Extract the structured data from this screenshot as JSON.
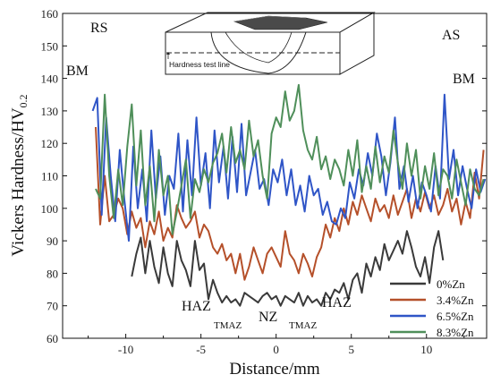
{
  "chart_data": {
    "type": "line",
    "xlabel": "Distance/mm",
    "ylabel_main": "Vickers Hardness/HV",
    "ylabel_sub": "0.2",
    "xlim": [
      -14.2,
      14
    ],
    "ylim": [
      60,
      160
    ],
    "xticks": [
      -10,
      -5,
      0,
      5,
      10
    ],
    "yticks": [
      60,
      70,
      80,
      90,
      100,
      110,
      120,
      130,
      140,
      150,
      160
    ],
    "grid": false,
    "legend_position": "bottom-right",
    "annotations": {
      "rs": "RS",
      "as": "AS",
      "bm_left": "BM",
      "bm_right": "BM",
      "haz_left": "HAZ",
      "haz_right": "HAZ",
      "tmaz_left": "TMAZ",
      "tmaz_right": "TMAZ",
      "nz": "NZ",
      "hardness_test_line": "Hardness test line"
    },
    "series": [
      {
        "name": "0%Zn",
        "color": "#3a3a3a",
        "x": [
          -9.6,
          -9.3,
          -9,
          -8.7,
          -8.4,
          -8.1,
          -7.8,
          -7.5,
          -7.2,
          -6.9,
          -6.6,
          -6.3,
          -6,
          -5.7,
          -5.4,
          -5.1,
          -4.8,
          -4.5,
          -4.2,
          -3.9,
          -3.6,
          -3.3,
          -3,
          -2.7,
          -2.4,
          -2.1,
          -1.8,
          -1.5,
          -1.2,
          -0.9,
          -0.6,
          -0.3,
          0,
          0.3,
          0.6,
          0.9,
          1.2,
          1.5,
          1.8,
          2.1,
          2.4,
          2.7,
          3,
          3.3,
          3.6,
          3.9,
          4.2,
          4.5,
          4.8,
          5.1,
          5.4,
          5.7,
          6,
          6.3,
          6.6,
          6.9,
          7.2,
          7.5,
          7.8,
          8.1,
          8.4,
          8.7,
          9,
          9.3,
          9.6,
          9.9,
          10.2,
          10.5,
          10.8,
          11.1
        ],
        "values": [
          79,
          86,
          91,
          80,
          90,
          82,
          77,
          88,
          80,
          76,
          90,
          84,
          81,
          76,
          90,
          81,
          83,
          72,
          78,
          74,
          71,
          73,
          71,
          72,
          70,
          74,
          73,
          72,
          71,
          73,
          74,
          72,
          73,
          70,
          73,
          72,
          71,
          74,
          70,
          73,
          71,
          72,
          70,
          74,
          72,
          75,
          74,
          77,
          72,
          78,
          80,
          74,
          83,
          79,
          85,
          81,
          89,
          84,
          87,
          90,
          86,
          93,
          88,
          82,
          79,
          85,
          77,
          88,
          93,
          84
        ]
      },
      {
        "name": "3.4%Zn",
        "color": "#b5502a",
        "x": [
          -12,
          -11.7,
          -11.4,
          -11.1,
          -10.8,
          -10.5,
          -10.2,
          -9.9,
          -9.6,
          -9.3,
          -9,
          -8.7,
          -8.4,
          -8.1,
          -7.8,
          -7.5,
          -7.2,
          -6.9,
          -6.6,
          -6.3,
          -6,
          -5.7,
          -5.4,
          -5.1,
          -4.8,
          -4.5,
          -4.2,
          -3.9,
          -3.6,
          -3.3,
          -3,
          -2.7,
          -2.4,
          -2.1,
          -1.8,
          -1.5,
          -1.2,
          -0.9,
          -0.6,
          -0.3,
          0,
          0.3,
          0.6,
          0.9,
          1.2,
          1.5,
          1.8,
          2.1,
          2.4,
          2.7,
          3,
          3.3,
          3.6,
          3.9,
          4.2,
          4.5,
          4.8,
          5.1,
          5.4,
          5.7,
          6,
          6.3,
          6.6,
          6.9,
          7.2,
          7.5,
          7.8,
          8.1,
          8.4,
          8.7,
          9,
          9.3,
          9.6,
          9.9,
          10.2,
          10.5,
          10.8,
          11.1,
          11.4,
          11.7,
          12,
          12.3,
          12.6,
          12.9,
          13.2,
          13.5,
          13.8
        ],
        "values": [
          125,
          95,
          110,
          96,
          98,
          103,
          100,
          92,
          99,
          94,
          97,
          88,
          96,
          92,
          99,
          90,
          94,
          91,
          101,
          97,
          94,
          96,
          99,
          91,
          95,
          93,
          88,
          86,
          89,
          84,
          86,
          80,
          86,
          78,
          82,
          88,
          84,
          80,
          86,
          88,
          85,
          82,
          93,
          86,
          84,
          80,
          86,
          83,
          79,
          85,
          88,
          95,
          91,
          97,
          93,
          100,
          95,
          102,
          98,
          104,
          100,
          96,
          103,
          99,
          101,
          97,
          104,
          98,
          102,
          106,
          97,
          103,
          99,
          105,
          100,
          104,
          98,
          101,
          106,
          99,
          103,
          95,
          102,
          97,
          111,
          103,
          118
        ]
      },
      {
        "name": "6.5%Zn",
        "color": "#2f55c7",
        "x": [
          -12.2,
          -11.9,
          -11.6,
          -11.3,
          -11,
          -10.7,
          -10.4,
          -10.1,
          -9.8,
          -9.5,
          -9.2,
          -8.9,
          -8.6,
          -8.3,
          -8,
          -7.7,
          -7.4,
          -7.1,
          -6.8,
          -6.5,
          -6.2,
          -5.9,
          -5.6,
          -5.3,
          -5,
          -4.7,
          -4.4,
          -4.1,
          -3.8,
          -3.5,
          -3.2,
          -2.9,
          -2.6,
          -2.3,
          -2,
          -1.7,
          -1.4,
          -1.1,
          -0.8,
          -0.5,
          -0.2,
          0.1,
          0.4,
          0.7,
          1,
          1.3,
          1.6,
          1.9,
          2.2,
          2.5,
          2.8,
          3.1,
          3.4,
          3.7,
          4,
          4.3,
          4.6,
          4.9,
          5.2,
          5.5,
          5.8,
          6.1,
          6.4,
          6.7,
          7,
          7.3,
          7.6,
          7.9,
          8.2,
          8.5,
          8.8,
          9.1,
          9.4,
          9.7,
          10,
          10.3,
          10.6,
          10.9,
          11.2,
          11.5,
          11.8,
          12.1,
          12.4,
          12.7,
          13,
          13.3,
          13.6,
          13.9
        ],
        "values": [
          130,
          134,
          98,
          128,
          110,
          96,
          118,
          103,
          90,
          119,
          100,
          112,
          96,
          124,
          103,
          116,
          98,
          110,
          106,
          123,
          99,
          121,
          104,
          128,
          107,
          117,
          100,
          124,
          108,
          119,
          103,
          122,
          105,
          126,
          104,
          111,
          118,
          106,
          109,
          101,
          112,
          108,
          115,
          104,
          112,
          101,
          107,
          99,
          110,
          104,
          106,
          98,
          102,
          96,
          95,
          100,
          97,
          108,
          103,
          112,
          107,
          117,
          110,
          123,
          116,
          104,
          114,
          128,
          106,
          113,
          102,
          110,
          100,
          108,
          104,
          99,
          113,
          103,
          135,
          109,
          118,
          104,
          113,
          106,
          100,
          112,
          105,
          109
        ]
      },
      {
        "name": "8.3%Zn",
        "color": "#4f8f5a",
        "x": [
          -12,
          -11.7,
          -11.4,
          -11.1,
          -10.8,
          -10.5,
          -10.2,
          -9.9,
          -9.6,
          -9.3,
          -9,
          -8.7,
          -8.4,
          -8.1,
          -7.8,
          -7.5,
          -7.2,
          -6.9,
          -6.6,
          -6.3,
          -6,
          -5.7,
          -5.4,
          -5.1,
          -4.8,
          -4.5,
          -4.2,
          -3.9,
          -3.6,
          -3.3,
          -3,
          -2.7,
          -2.4,
          -2.1,
          -1.8,
          -1.5,
          -1.2,
          -0.9,
          -0.6,
          -0.3,
          0,
          0.3,
          0.6,
          0.9,
          1.2,
          1.5,
          1.8,
          2.1,
          2.4,
          2.7,
          3,
          3.3,
          3.6,
          3.9,
          4.2,
          4.5,
          4.8,
          5.1,
          5.4,
          5.7,
          6,
          6.3,
          6.6,
          6.9,
          7.2,
          7.5,
          7.8,
          8.1,
          8.4,
          8.7,
          9,
          9.3,
          9.6,
          9.9,
          10.2,
          10.5,
          10.8,
          11.1,
          11.4,
          11.7,
          12,
          12.3,
          12.6,
          12.9,
          13.2,
          13.5,
          13.8
        ],
        "values": [
          106,
          103,
          135,
          110,
          97,
          112,
          101,
          119,
          132,
          107,
          124,
          101,
          113,
          96,
          118,
          104,
          110,
          92,
          99,
          107,
          115,
          97,
          109,
          105,
          112,
          108,
          114,
          117,
          123,
          111,
          125,
          114,
          118,
          112,
          127,
          116,
          121,
          110,
          103,
          123,
          128,
          125,
          136,
          127,
          130,
          138,
          124,
          118,
          115,
          122,
          112,
          116,
          109,
          115,
          112,
          107,
          118,
          110,
          121,
          105,
          113,
          106,
          119,
          108,
          116,
          111,
          124,
          114,
          106,
          120,
          110,
          118,
          103,
          113,
          106,
          117,
          104,
          112,
          110,
          103,
          115,
          108,
          101,
          112,
          106,
          104,
          109
        ]
      }
    ]
  }
}
